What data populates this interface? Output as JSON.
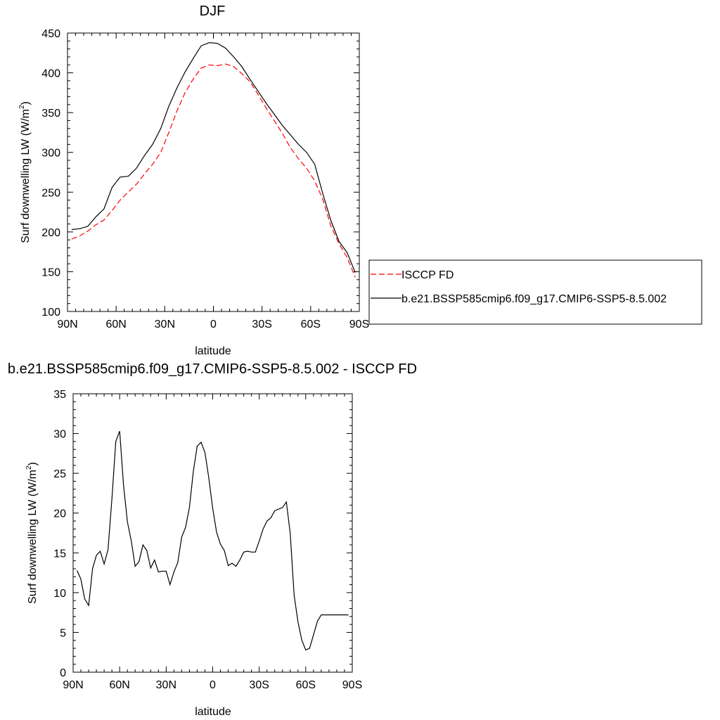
{
  "chart_data": [
    {
      "type": "line",
      "title": "DJF",
      "xlabel": "latitude",
      "ylabel": "Surf downwelling LW (W/m",
      "ylabel_sup": "2",
      "ylabel_end": ")",
      "xlim": [
        90,
        -90
      ],
      "ylim": [
        100,
        450
      ],
      "x_ticks": [
        90,
        60,
        30,
        0,
        -30,
        -60,
        -90
      ],
      "x_tick_labels": [
        "90N",
        "60N",
        "30N",
        "0",
        "30S",
        "60S",
        "90S"
      ],
      "y_ticks": [
        100,
        150,
        200,
        250,
        300,
        350,
        400,
        450
      ],
      "y_tick_labels": [
        "100",
        "150",
        "200",
        "250",
        "300",
        "350",
        "400",
        "450"
      ],
      "grid": false,
      "legend_placement": "right",
      "series": [
        {
          "name": "ISCCP FD",
          "color": "#ff0000",
          "dash": "dashed",
          "x": [
            87.5,
            82.5,
            77.5,
            72.5,
            67.5,
            62.5,
            57.5,
            52.5,
            47.5,
            42.5,
            37.5,
            32.5,
            27.5,
            22.5,
            17.5,
            12.5,
            7.5,
            2.5,
            -2.5,
            -7.5,
            -12.5,
            -17.5,
            -22.5,
            -27.5,
            -32.5,
            -37.5,
            -42.5,
            -47.5,
            -52.5,
            -57.5,
            -62.5,
            -67.5,
            -72.5,
            -77.5,
            -82.5,
            -87.5
          ],
          "y": [
            191,
            195,
            201,
            209,
            215,
            227,
            240,
            250,
            260,
            273,
            285,
            300,
            325,
            352,
            375,
            392,
            406,
            410,
            409,
            411,
            408,
            399,
            389,
            373,
            356,
            340,
            324,
            306,
            292,
            280,
            264,
            241,
            207,
            185,
            168,
            143
          ]
        },
        {
          "name": "b.e21.BSSP585cmip6.f09_g17.CMIP6-SSP5-8.5.002",
          "color": "#000000",
          "dash": "solid",
          "x": [
            87.5,
            82.5,
            77.5,
            72.5,
            67.5,
            62.5,
            57.5,
            52.5,
            47.5,
            42.5,
            37.5,
            32.5,
            27.5,
            22.5,
            17.5,
            12.5,
            7.5,
            2.5,
            -2.5,
            -7.5,
            -12.5,
            -17.5,
            -22.5,
            -27.5,
            -32.5,
            -37.5,
            -42.5,
            -47.5,
            -52.5,
            -57.5,
            -62.5,
            -67.5,
            -72.5,
            -77.5,
            -82.5,
            -87.5
          ],
          "y": [
            203,
            204,
            207,
            219,
            229,
            256,
            269,
            270,
            280,
            296,
            310,
            330,
            358,
            381,
            401,
            418,
            434,
            438,
            437,
            431,
            420,
            408,
            392,
            377,
            362,
            348,
            334,
            322,
            310,
            300,
            285,
            248,
            214,
            188,
            174,
            149
          ]
        }
      ]
    },
    {
      "type": "line",
      "title": "b.e21.BSSP585cmip6.f09_g17.CMIP6-SSP5-8.5.002 - ISCCP FD",
      "xlabel": "latitude",
      "ylabel": "Surf downwelling LW (W/m",
      "ylabel_sup": "2",
      "ylabel_end": ")",
      "xlim": [
        90,
        -90
      ],
      "ylim": [
        0,
        35
      ],
      "x_ticks": [
        90,
        60,
        30,
        0,
        -30,
        -60,
        -90
      ],
      "x_tick_labels": [
        "90N",
        "60N",
        "30N",
        "0",
        "30S",
        "60S",
        "90S"
      ],
      "y_ticks": [
        0,
        5,
        10,
        15,
        20,
        25,
        30,
        35
      ],
      "y_tick_labels": [
        "0",
        "5",
        "10",
        "15",
        "20",
        "25",
        "30",
        "35"
      ],
      "grid": false,
      "series": [
        {
          "color": "#000000",
          "dash": "solid",
          "x": [
            87.5,
            85,
            82.5,
            80,
            77.5,
            75,
            72.5,
            70,
            67.5,
            65,
            62.5,
            60,
            57.5,
            55,
            52.5,
            50,
            47.5,
            45,
            42.5,
            40,
            37.5,
            35,
            32.5,
            30,
            27.5,
            25,
            22.5,
            20,
            17.5,
            15,
            12.5,
            10,
            7.5,
            5,
            2.5,
            0,
            -2.5,
            -5,
            -7.5,
            -10,
            -12.5,
            -15,
            -17.5,
            -20,
            -22.5,
            -25,
            -27.5,
            -30,
            -32.5,
            -35,
            -37.5,
            -40,
            -42.5,
            -45,
            -47.5,
            -50,
            -52.5,
            -55,
            -57.5,
            -60,
            -62.5,
            -65,
            -67.5,
            -70,
            -72.5,
            -75,
            -77.5,
            -80,
            -82.5,
            -85,
            -87.5
          ],
          "y": [
            12.8,
            11.7,
            9.2,
            8.4,
            13.0,
            14.7,
            15.2,
            13.6,
            15.4,
            21.7,
            29.0,
            30.3,
            23.5,
            18.9,
            16.5,
            13.3,
            13.9,
            16.0,
            15.3,
            13.1,
            14.1,
            12.6,
            12.7,
            12.7,
            11.0,
            12.6,
            13.8,
            17.0,
            18.2,
            20.7,
            25.2,
            28.4,
            28.9,
            27.6,
            24.4,
            20.6,
            17.6,
            16.1,
            15.3,
            13.4,
            13.7,
            13.3,
            14.1,
            15.1,
            15.2,
            15.1,
            15.1,
            16.5,
            18.0,
            19.0,
            19.4,
            20.3,
            20.5,
            20.7,
            21.4,
            17.4,
            9.7,
            6.3,
            4.0,
            2.8,
            3.0,
            4.7,
            6.4,
            7.2,
            7.2,
            7.2,
            7.2,
            7.2,
            7.2,
            7.2,
            7.2
          ]
        }
      ]
    }
  ]
}
